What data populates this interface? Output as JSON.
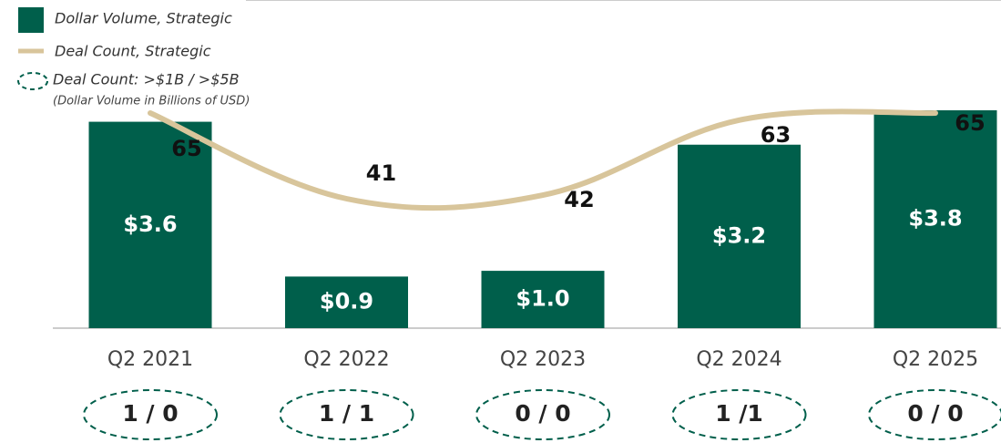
{
  "chart_data": {
    "type": "bar",
    "subtitle": "(Dollar Volume in Billions of USD)",
    "categories": [
      "Q2 2021",
      "Q2 2022",
      "Q2 2023",
      "Q2 2024",
      "Q2 2025"
    ],
    "series": [
      {
        "name": "Dollar Volume, Strategic",
        "type": "bar",
        "color": "#005f4b",
        "values": [
          3.6,
          0.9,
          1.0,
          3.2,
          3.8
        ],
        "value_labels": [
          "$3.6",
          "$0.9",
          "$1.0",
          "$3.2",
          "$3.8"
        ]
      },
      {
        "name": "Deal Count, Strategic",
        "type": "line",
        "color": "#d8c59b",
        "values": [
          65,
          41,
          42,
          63,
          65
        ]
      }
    ],
    "large_deals": {
      "name": "Deal Count: >$1B / >$5B",
      "color": "#005f4b",
      "labels": [
        "1 / 0",
        "1 / 1",
        "0 / 0",
        "1 /1",
        "0 / 0"
      ]
    }
  }
}
